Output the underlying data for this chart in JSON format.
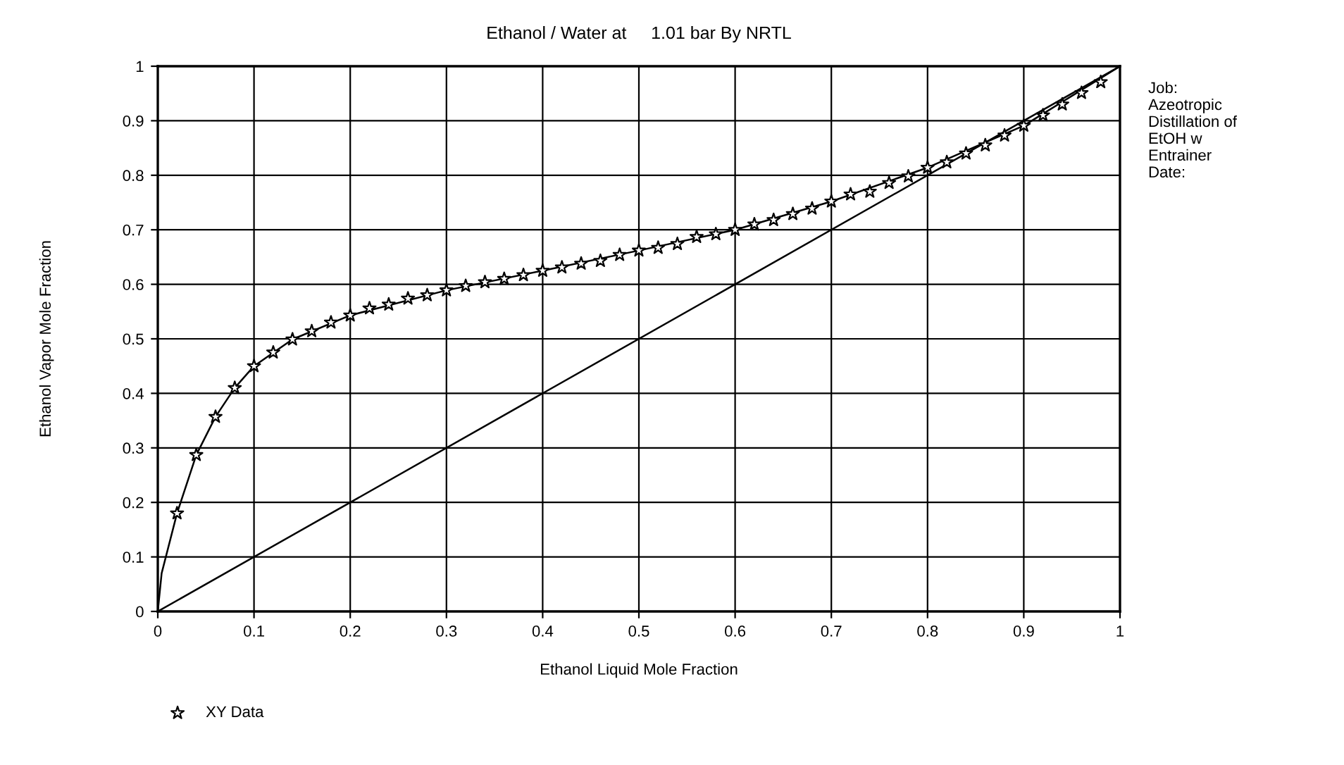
{
  "chart_data": {
    "type": "line",
    "title": "Ethanol / Water at     1.01 bar By NRTL",
    "xlabel": "Ethanol Liquid Mole Fraction",
    "ylabel": "Ethanol Vapor Mole Fraction",
    "series": [
      {
        "color": "#000000",
        "line_style": "solid",
        "marker": "none",
        "x": [
          0,
          0.004,
          0.02,
          0.04,
          0.06,
          0.08,
          0.1,
          0.14,
          0.2,
          0.3,
          0.4,
          0.5,
          0.6,
          0.7,
          0.8,
          0.9,
          1
        ],
        "values": [
          0,
          0.07,
          0.18,
          0.287,
          0.357,
          0.41,
          0.45,
          0.499,
          0.543,
          0.589,
          0.625,
          0.662,
          0.7,
          0.752,
          0.814,
          0.891,
          1
        ]
      },
      {
        "color": "#000000",
        "line_style": "solid",
        "marker": "none",
        "x": [
          0,
          1
        ],
        "values": [
          0,
          1
        ]
      },
      {
        "type": "scatter",
        "name": "XY Data",
        "color": "#000000",
        "marker": "star",
        "x": [
          0.02,
          0.04,
          0.06,
          0.08,
          0.1,
          0.12,
          0.14,
          0.16,
          0.18,
          0.2,
          0.22,
          0.24,
          0.26,
          0.28,
          0.3,
          0.32,
          0.34,
          0.36,
          0.38,
          0.4,
          0.42,
          0.44,
          0.46,
          0.48,
          0.5,
          0.52,
          0.54,
          0.56,
          0.58,
          0.6,
          0.62,
          0.64,
          0.66,
          0.68,
          0.7,
          0.72,
          0.74,
          0.76,
          0.78,
          0.8,
          0.82,
          0.84,
          0.86,
          0.88,
          0.9,
          0.92,
          0.94,
          0.96,
          0.98
        ],
        "values": [
          0.18,
          0.287,
          0.357,
          0.41,
          0.45,
          0.475,
          0.499,
          0.514,
          0.53,
          0.543,
          0.556,
          0.563,
          0.574,
          0.58,
          0.589,
          0.597,
          0.604,
          0.61,
          0.617,
          0.625,
          0.631,
          0.638,
          0.643,
          0.654,
          0.662,
          0.667,
          0.674,
          0.687,
          0.692,
          0.7,
          0.71,
          0.718,
          0.729,
          0.739,
          0.752,
          0.765,
          0.77,
          0.786,
          0.798,
          0.814,
          0.824,
          0.84,
          0.855,
          0.873,
          0.891,
          0.91,
          0.93,
          0.951,
          0.971
        ]
      }
    ],
    "xlim": [
      0,
      1
    ],
    "ylim": [
      0,
      1
    ],
    "xticks": [
      0,
      {
        "value": 0.1,
        "label": "0.1"
      },
      {
        "value": 0.2,
        "label": "0.2"
      },
      {
        "value": 0.3,
        "label": "0.3"
      },
      {
        "value": 0.4,
        "label": "0.4"
      },
      {
        "value": 0.5,
        "label": "0.5"
      },
      {
        "value": 0.6,
        "label": "0.6"
      },
      {
        "value": 0.7,
        "label": "0.7"
      },
      {
        "value": 0.8,
        "label": "0.8"
      },
      {
        "value": 0.9,
        "label": "0.9"
      },
      1
    ],
    "yticks": [
      0,
      0.1,
      0.2,
      0.3,
      0.4,
      0.5,
      0.6,
      0.7,
      0.8,
      0.9,
      1
    ],
    "grid": true,
    "legend": "bottom left",
    "annotations": [
      "Job:\nAzeotropic\nDistillation of\nEtOH w\nEntrainer\nDate:"
    ]
  }
}
